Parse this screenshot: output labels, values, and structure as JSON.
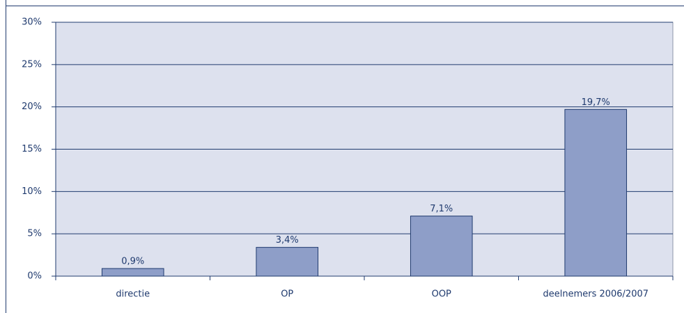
{
  "chart_data": {
    "type": "bar",
    "categories": [
      "directie",
      "OP",
      "OOP",
      "deelnemers 2006/2007"
    ],
    "values": [
      0.9,
      3.4,
      7.1,
      19.7
    ],
    "value_labels": [
      "0,9%",
      "3,4%",
      "7,1%",
      "19,7%"
    ],
    "color": "#8e9ec8",
    "ylim": [
      0,
      30
    ],
    "yticks": [
      {
        "value": 0,
        "label": "0%"
      },
      {
        "value": 5,
        "label": "5%"
      },
      {
        "value": 10,
        "label": "10%"
      },
      {
        "value": 15,
        "label": "15%"
      },
      {
        "value": 20,
        "label": "20%"
      },
      {
        "value": 25,
        "label": "25%"
      },
      {
        "value": 30,
        "label": "30%"
      }
    ],
    "grid": true
  }
}
